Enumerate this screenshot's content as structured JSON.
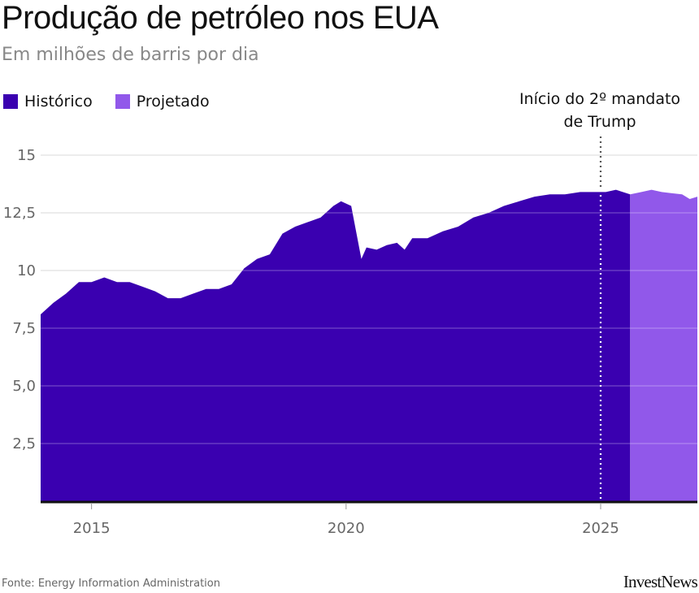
{
  "header": {
    "title": "Produção de petróleo nos EUA",
    "subtitle": "Em milhões de barris por dia"
  },
  "legend": [
    {
      "label": "Histórico",
      "color": "#3a00b0"
    },
    {
      "label": "Projetado",
      "color": "#9158ea"
    }
  ],
  "annotation": {
    "line1": "Início do 2º mandato",
    "line2": "de Trump",
    "x": 2025.0
  },
  "footer": {
    "source": "Fonte: Energy Information Administration",
    "brand": "InvestNews"
  },
  "chart_data": {
    "type": "area",
    "xlim": [
      2014.0,
      2026.9
    ],
    "ylim": [
      0,
      15
    ],
    "grid": true,
    "y_ticks": [
      {
        "value": 2.5,
        "label": "2,5"
      },
      {
        "value": 5.0,
        "label": "5,0"
      },
      {
        "value": 7.5,
        "label": "7,5"
      },
      {
        "value": 10,
        "label": "10"
      },
      {
        "value": 12.5,
        "label": "12,5"
      },
      {
        "value": 15,
        "label": "15"
      }
    ],
    "x_ticks": [
      {
        "value": 2015,
        "label": "2015"
      },
      {
        "value": 2020,
        "label": "2020"
      },
      {
        "value": 2025,
        "label": "2025"
      }
    ],
    "series": [
      {
        "name": "Histórico",
        "color": "#3a00b0",
        "x": [
          2014.0,
          2014.25,
          2014.5,
          2014.75,
          2015.0,
          2015.25,
          2015.5,
          2015.75,
          2016.0,
          2016.25,
          2016.5,
          2016.75,
          2017.0,
          2017.25,
          2017.5,
          2017.75,
          2018.0,
          2018.25,
          2018.5,
          2018.75,
          2019.0,
          2019.25,
          2019.5,
          2019.75,
          2019.9,
          2020.1,
          2020.3,
          2020.4,
          2020.6,
          2020.8,
          2021.0,
          2021.15,
          2021.3,
          2021.6,
          2021.9,
          2022.2,
          2022.5,
          2022.8,
          2023.1,
          2023.4,
          2023.7,
          2024.0,
          2024.3,
          2024.6,
          2024.9,
          2025.1,
          2025.3,
          2025.58
        ],
        "values": [
          8.1,
          8.6,
          9.0,
          9.5,
          9.5,
          9.7,
          9.5,
          9.5,
          9.3,
          9.1,
          8.8,
          8.8,
          9.0,
          9.2,
          9.2,
          9.4,
          10.1,
          10.5,
          10.7,
          11.6,
          11.9,
          12.1,
          12.3,
          12.8,
          13.0,
          12.8,
          10.5,
          11.0,
          10.9,
          11.1,
          11.2,
          10.9,
          11.4,
          11.4,
          11.7,
          11.9,
          12.3,
          12.5,
          12.8,
          13.0,
          13.2,
          13.3,
          13.3,
          13.4,
          13.4,
          13.4,
          13.5,
          13.3
        ]
      },
      {
        "name": "Projetado",
        "color": "#9158ea",
        "x": [
          2025.58,
          2025.8,
          2026.0,
          2026.2,
          2026.4,
          2026.6,
          2026.75,
          2026.9
        ],
        "values": [
          13.3,
          13.4,
          13.5,
          13.4,
          13.35,
          13.3,
          13.1,
          13.2
        ]
      }
    ]
  }
}
